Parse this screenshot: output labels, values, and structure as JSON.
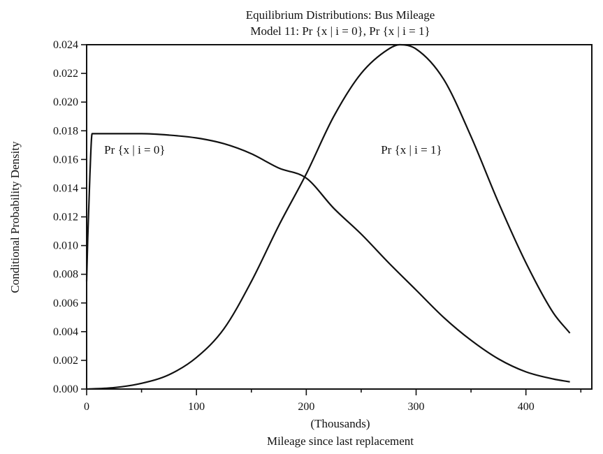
{
  "chart_data": {
    "type": "line",
    "title_line1": "Equilibrium Distributions: Bus Mileage",
    "title_line2": "Model 11: Pr {x | i = 0}, Pr {x | i = 1}",
    "ylabel": "Conditional Probability Density",
    "xlabel_units": "(Thousands)",
    "xlabel": "Mileage since last replacement",
    "xlim": [
      0,
      460
    ],
    "ylim": [
      0,
      0.024
    ],
    "xticks": [
      0,
      100,
      200,
      300,
      400
    ],
    "xtick_labels": [
      "0",
      "100",
      "200",
      "300",
      "400"
    ],
    "yticks": [
      0,
      0.002,
      0.004,
      0.006,
      0.008,
      0.01,
      0.012,
      0.014,
      0.016,
      0.018,
      0.02,
      0.022,
      0.024
    ],
    "ytick_labels": [
      "0.000",
      "0.002",
      "0.004",
      "0.006",
      "0.008",
      "0.010",
      "0.012",
      "0.014",
      "0.016",
      "0.018",
      "0.020",
      "0.022",
      "0.024"
    ],
    "grid": false,
    "legend": "none",
    "series": [
      {
        "name": "Pr {x | i = 0}",
        "x": [
          0,
          1,
          3,
          5,
          25,
          50,
          75,
          100,
          125,
          150,
          175,
          200,
          225,
          250,
          275,
          300,
          325,
          350,
          375,
          400,
          425,
          440
        ],
        "y": [
          0.0075,
          0.0105,
          0.015,
          0.0178,
          0.0178,
          0.0178,
          0.0177,
          0.0175,
          0.0171,
          0.0164,
          0.0154,
          0.0147,
          0.0126,
          0.0108,
          0.0088,
          0.0069,
          0.005,
          0.0034,
          0.0021,
          0.0012,
          0.0007,
          0.0005
        ]
      },
      {
        "name": "Pr {x | i = 1}",
        "x": [
          0,
          25,
          50,
          75,
          100,
          125,
          150,
          175,
          200,
          225,
          250,
          275,
          285,
          300,
          325,
          350,
          375,
          400,
          425,
          440
        ],
        "y": [
          0.0,
          0.0001,
          0.0004,
          0.001,
          0.0022,
          0.0042,
          0.0075,
          0.0114,
          0.015,
          0.019,
          0.022,
          0.0237,
          0.024,
          0.0237,
          0.0216,
          0.0176,
          0.013,
          0.0088,
          0.0053,
          0.0039
        ]
      }
    ],
    "annotations": [
      {
        "text": "Pr {x | i = 0}",
        "series": 0,
        "at_x": 16,
        "at_y": 0.0164
      },
      {
        "text": "Pr {x | i = 1}",
        "series": 1,
        "at_x": 268,
        "at_y": 0.0164
      }
    ]
  }
}
